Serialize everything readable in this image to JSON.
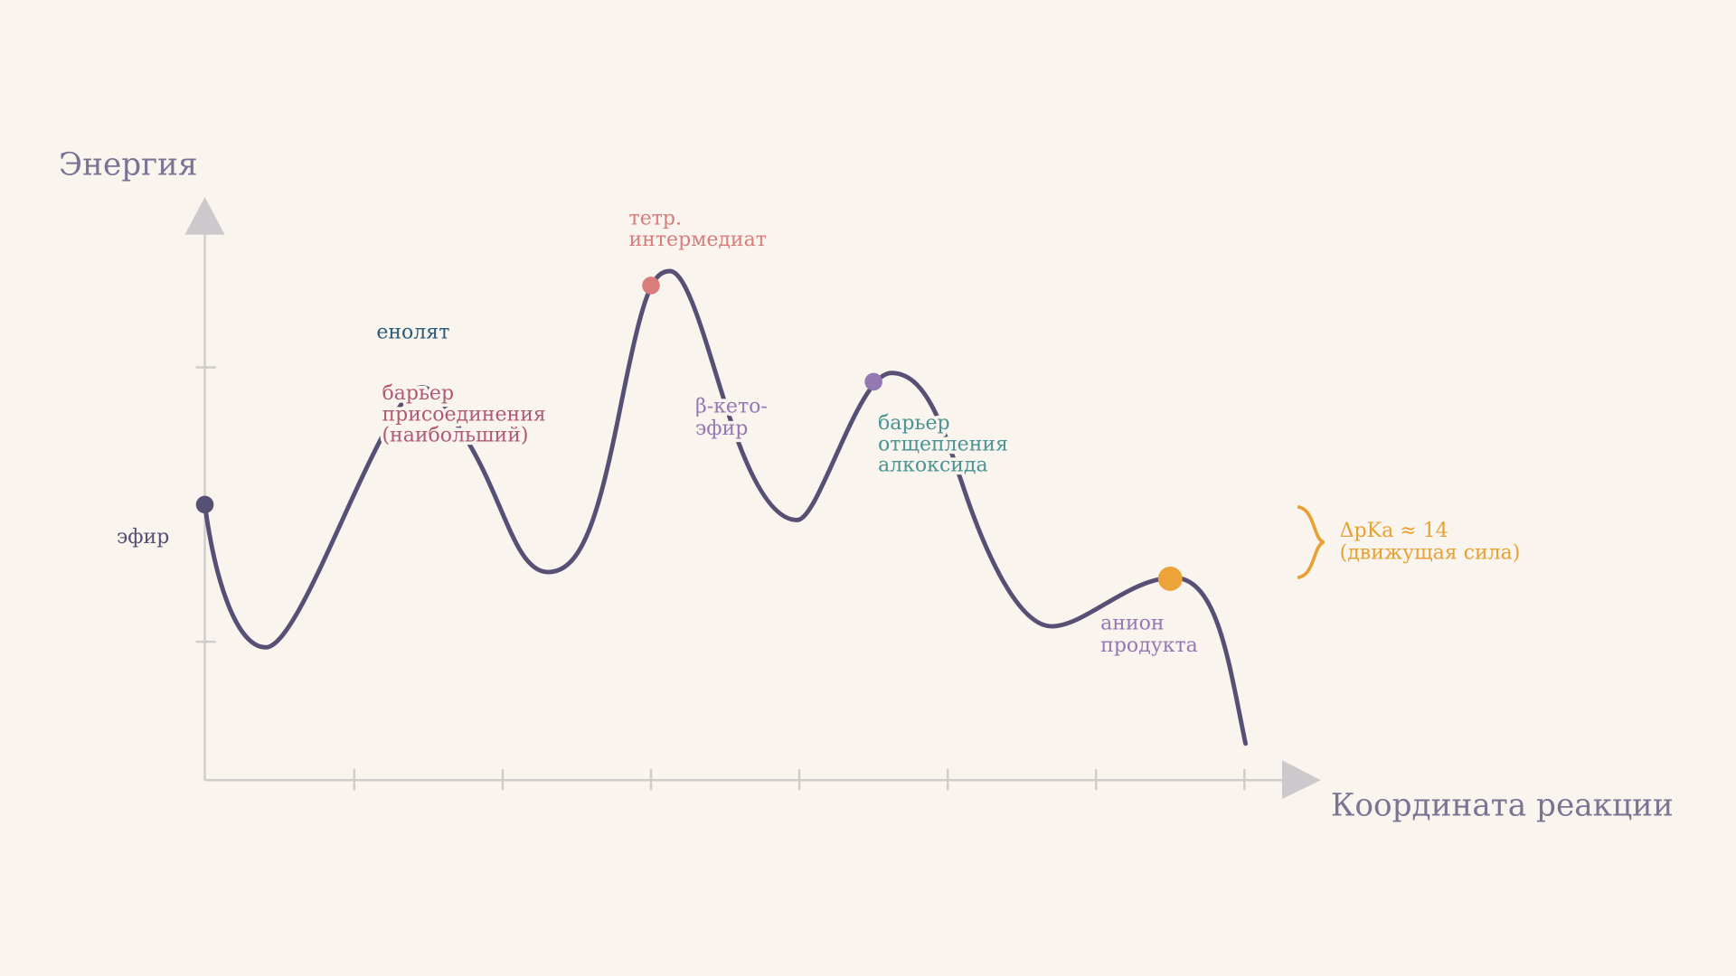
{
  "axes": {
    "y_label": "Энергия",
    "x_label": "Координата реакции"
  },
  "labels": {
    "ester": [
      "эфир"
    ],
    "enolate": [
      "енолят"
    ],
    "addition_barrier": [
      "барьер",
      "присоединения",
      "(наибольший)"
    ],
    "tetrahedral": [
      "тетр.",
      "интермедиат"
    ],
    "beta_keto_ester": [
      "β-кето-",
      "эфир"
    ],
    "elimination_barrier": [
      "барьер",
      "отщепления",
      "алкоксида"
    ],
    "product_anion": [
      "анион",
      "продукта"
    ],
    "driving_force": [
      "ΔpKa ≈ 14",
      "(движущая сила)"
    ]
  }
}
